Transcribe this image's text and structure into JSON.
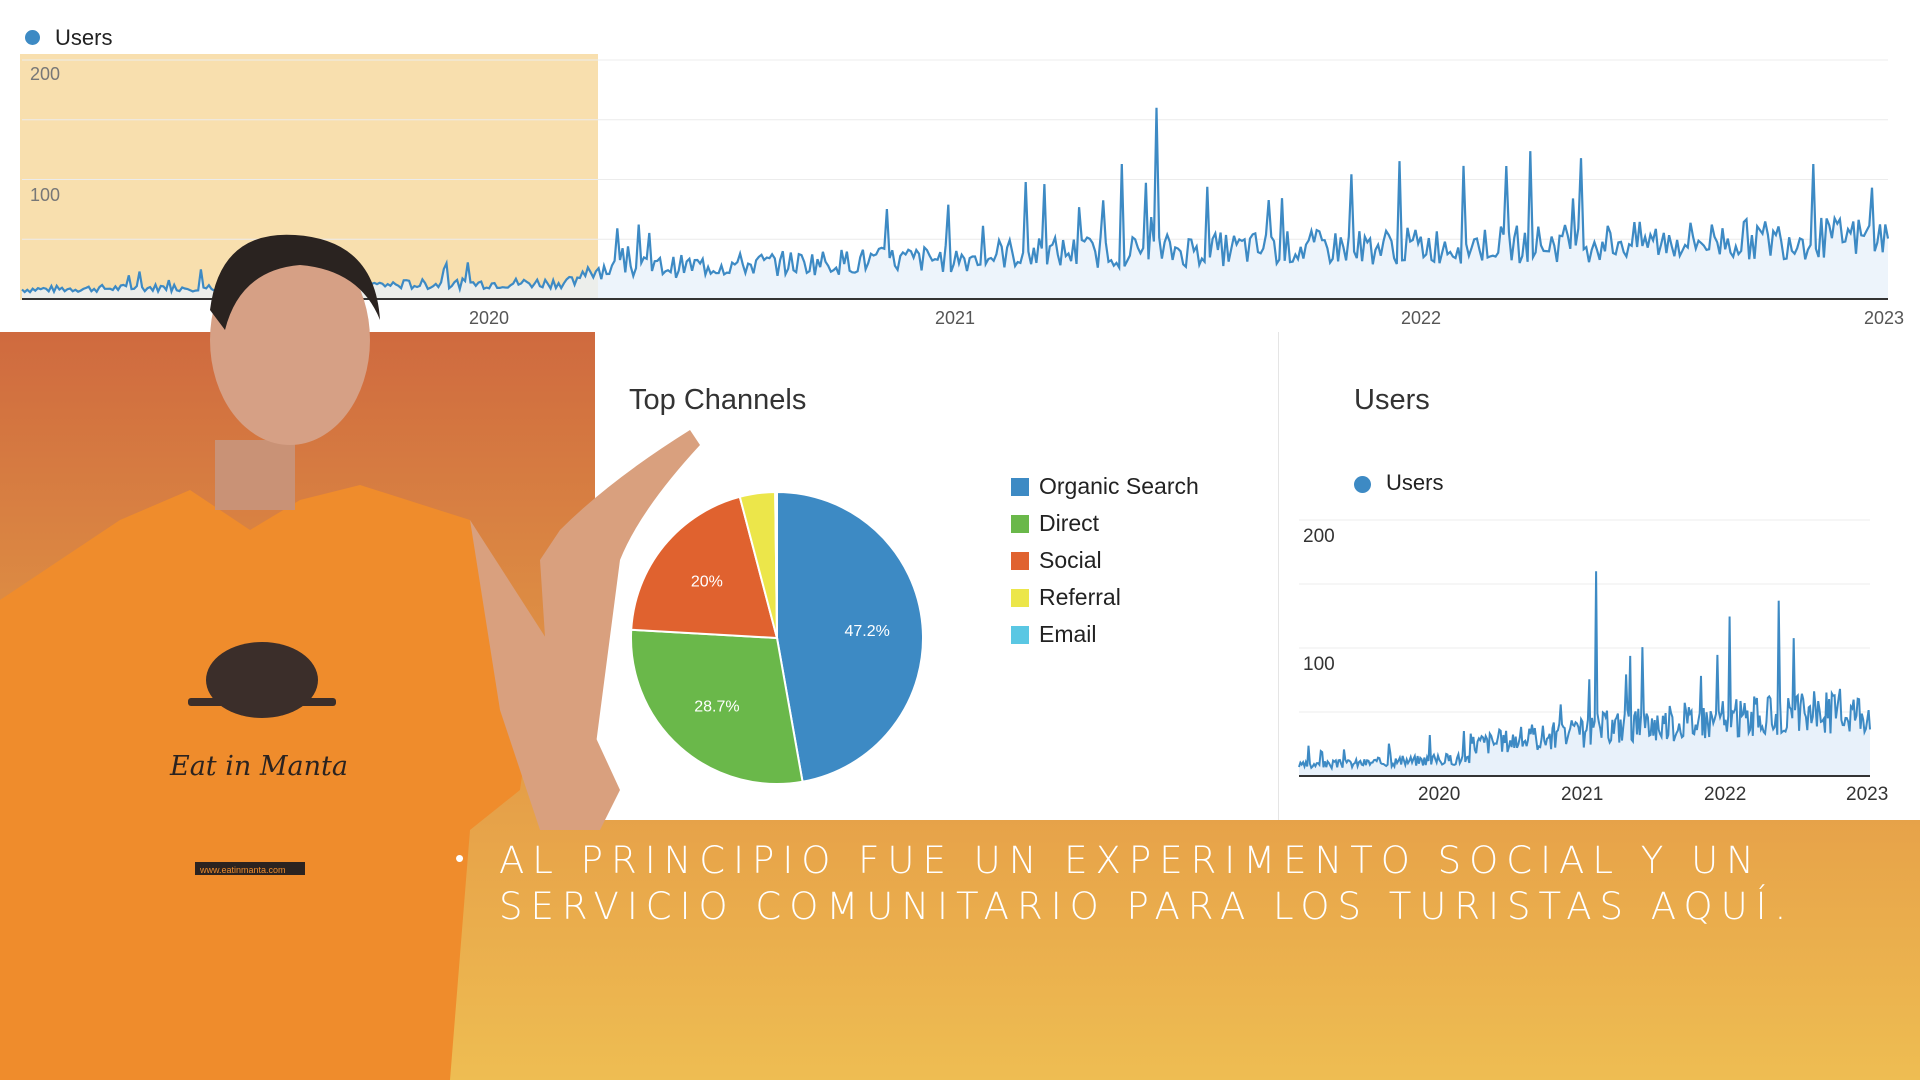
{
  "top_chart": {
    "legend": "Users",
    "y_ticks": [
      "200",
      "100"
    ],
    "x_ticks": [
      "2020",
      "2021",
      "2022",
      "2023"
    ],
    "highlight_color": "#f8dfae"
  },
  "channels": {
    "title": "Top Channels",
    "legend": [
      {
        "label": "Organic Search",
        "color": "#3d8ac4"
      },
      {
        "label": "Direct",
        "color": "#6ab84a"
      },
      {
        "label": "Social",
        "color": "#e0622f"
      },
      {
        "label": "Referral",
        "color": "#ece64a"
      },
      {
        "label": "Email",
        "color": "#5ac7e3"
      }
    ],
    "pie_labels": [
      "47.2%",
      "28.7%",
      "20%"
    ]
  },
  "users_panel": {
    "title": "Users",
    "legend": "Users",
    "y_ticks": [
      "200",
      "100"
    ],
    "x_ticks": [
      "2020",
      "2021",
      "2022",
      "2023"
    ]
  },
  "caption": {
    "bullet": "•",
    "text": "Al principio fue un experimento social y un servicio comunitario para los turistas aquí."
  },
  "presenter": {
    "shirt_logo": "Eat in Manta",
    "shirt_url": "www.eatinmanta.com"
  },
  "chart_data": [
    {
      "type": "line",
      "title": "",
      "series": [
        {
          "name": "Users",
          "color": "#3d8ac4",
          "values_approx": "daily users ~5-15 from 2019 to early 2020, ~20-40 through 2020 with a spike near 160 at end of 2020, ~40-55 in 2021-2022 with peaks ~100-120"
        }
      ],
      "x_range": [
        "2019",
        "2023"
      ],
      "ylim": [
        0,
        200
      ],
      "grid": true,
      "legend_position": "top-left"
    },
    {
      "type": "pie",
      "title": "Top Channels",
      "categories": [
        "Organic Search",
        "Direct",
        "Social",
        "Referral",
        "Email"
      ],
      "values": [
        47.2,
        28.7,
        20.0,
        3.9,
        0.2
      ],
      "legend_position": "right"
    },
    {
      "type": "line",
      "title": "Users",
      "series": [
        {
          "name": "Users",
          "color": "#3d8ac4"
        }
      ],
      "x_range": [
        "2019",
        "2023"
      ],
      "ylim": [
        0,
        200
      ],
      "grid": true,
      "legend_position": "top-left"
    }
  ]
}
